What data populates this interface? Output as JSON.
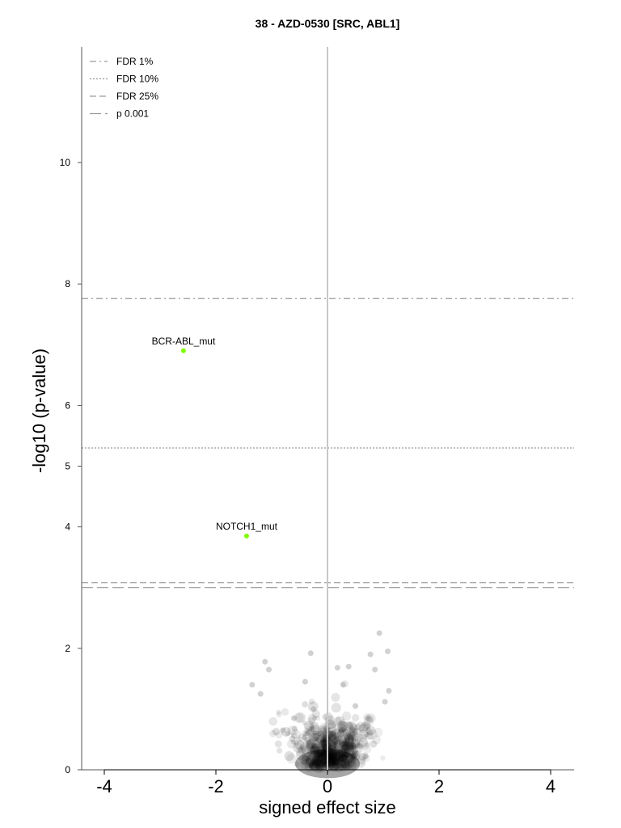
{
  "chart_data": {
    "type": "scatter",
    "title": "38 - AZD-0530 [SRC, ABL1]",
    "xlabel": "signed effect size",
    "ylabel": "-log10 (p-value)",
    "xlim": [
      -4.4,
      4.4
    ],
    "ylim": [
      0,
      11.9
    ],
    "x_ticks": [
      -4,
      -2,
      0,
      2,
      4
    ],
    "y_ticks": [
      0,
      2,
      4,
      5,
      6,
      8,
      10
    ],
    "vertical_reference_line": 0,
    "thresholds": [
      {
        "name": "FDR 1%",
        "y": 7.76,
        "style": "dashdot"
      },
      {
        "name": "FDR 10%",
        "y": 5.3,
        "style": "dotted"
      },
      {
        "name": "FDR 25%",
        "y": 3.08,
        "style": "dashed"
      },
      {
        "name": "p 0.001",
        "y": 3.0,
        "style": "longdash"
      }
    ],
    "legend_position": "top-left",
    "highlighted_points": [
      {
        "label": "BCR-ABL_mut",
        "x": -2.58,
        "y": 6.9,
        "color": "#7fff00"
      },
      {
        "label": "NOTCH1_mut",
        "x": -1.45,
        "y": 3.85,
        "color": "#7fff00"
      }
    ],
    "background_points": [
      {
        "x": 0.93,
        "y": 2.25
      },
      {
        "x": 1.08,
        "y": 1.95
      },
      {
        "x": 0.77,
        "y": 1.9
      },
      {
        "x": -0.3,
        "y": 1.92
      },
      {
        "x": 0.18,
        "y": 1.68
      },
      {
        "x": 0.38,
        "y": 1.7
      },
      {
        "x": 0.85,
        "y": 1.65
      },
      {
        "x": -1.12,
        "y": 1.78
      },
      {
        "x": -1.05,
        "y": 1.65
      },
      {
        "x": 1.1,
        "y": 1.3
      },
      {
        "x": 1.03,
        "y": 1.12
      },
      {
        "x": -1.35,
        "y": 1.4
      },
      {
        "x": -1.2,
        "y": 1.25
      },
      {
        "x": -0.4,
        "y": 1.45
      },
      {
        "x": 0.28,
        "y": 1.4
      },
      {
        "x": -0.25,
        "y": 1.0
      },
      {
        "x": 0.5,
        "y": 1.05
      },
      {
        "x": 0.72,
        "y": 0.85
      },
      {
        "x": -0.6,
        "y": 0.85
      },
      {
        "x": -0.8,
        "y": 0.65
      },
      {
        "x": 0.3,
        "y": 0.75
      }
    ]
  }
}
